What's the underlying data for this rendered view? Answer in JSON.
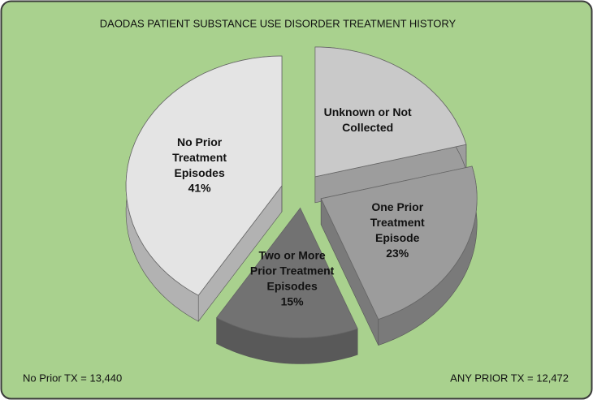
{
  "chart_data": {
    "type": "pie3d",
    "title": "DAODAS PATIENT SUBSTANCE USE DISORDER TREATMENT HISTORY",
    "categories": [
      "Unknown or Not Collected",
      "One Prior Treatment Episode",
      "Two or More Prior Treatment Episodes",
      "No Prior Treatment Episodes"
    ],
    "values": [
      21,
      23,
      15,
      41
    ],
    "value_labels": [
      null,
      "23%",
      "15%",
      "41%"
    ],
    "colors": [
      "#c9c9c9",
      "#9c9c9c",
      "#727272",
      "#e4e4e4"
    ],
    "annotations": [
      "No Prior TX = 13,440",
      "ANY PRIOR TX = 12,472"
    ]
  }
}
